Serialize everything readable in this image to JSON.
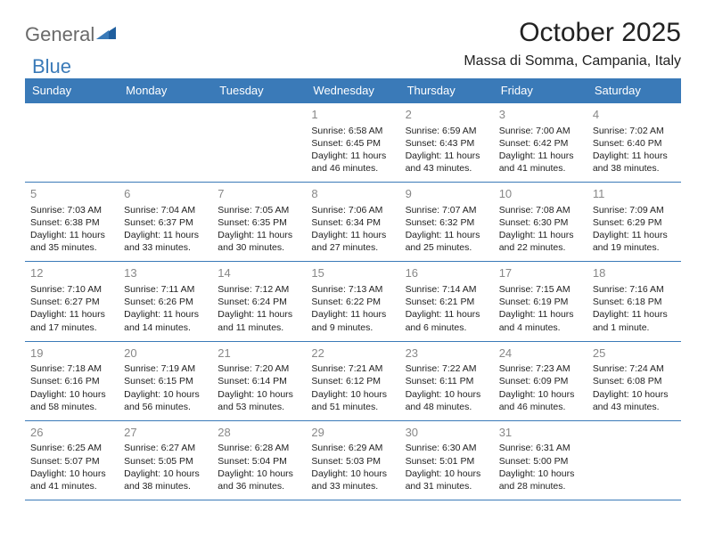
{
  "brand": {
    "general": "General",
    "blue": "Blue"
  },
  "title": "October 2025",
  "location": "Massa di Somma, Campania, Italy",
  "colors": {
    "header_bg": "#3a7ab8",
    "header_text": "#ffffff",
    "border": "#3a7ab8",
    "daynum": "#888888",
    "text": "#222222",
    "logo_gray": "#6a6a6a",
    "logo_blue": "#3a7ab8",
    "background": "#ffffff"
  },
  "typography": {
    "title_fontsize": 30,
    "location_fontsize": 16,
    "dayheader_fontsize": 13,
    "daynum_fontsize": 13,
    "cell_fontsize": 10.5
  },
  "weekdays": [
    "Sunday",
    "Monday",
    "Tuesday",
    "Wednesday",
    "Thursday",
    "Friday",
    "Saturday"
  ],
  "weeks": [
    [
      null,
      null,
      null,
      {
        "n": "1",
        "sr": "Sunrise: 6:58 AM",
        "ss": "Sunset: 6:45 PM",
        "d1": "Daylight: 11 hours",
        "d2": "and 46 minutes."
      },
      {
        "n": "2",
        "sr": "Sunrise: 6:59 AM",
        "ss": "Sunset: 6:43 PM",
        "d1": "Daylight: 11 hours",
        "d2": "and 43 minutes."
      },
      {
        "n": "3",
        "sr": "Sunrise: 7:00 AM",
        "ss": "Sunset: 6:42 PM",
        "d1": "Daylight: 11 hours",
        "d2": "and 41 minutes."
      },
      {
        "n": "4",
        "sr": "Sunrise: 7:02 AM",
        "ss": "Sunset: 6:40 PM",
        "d1": "Daylight: 11 hours",
        "d2": "and 38 minutes."
      }
    ],
    [
      {
        "n": "5",
        "sr": "Sunrise: 7:03 AM",
        "ss": "Sunset: 6:38 PM",
        "d1": "Daylight: 11 hours",
        "d2": "and 35 minutes."
      },
      {
        "n": "6",
        "sr": "Sunrise: 7:04 AM",
        "ss": "Sunset: 6:37 PM",
        "d1": "Daylight: 11 hours",
        "d2": "and 33 minutes."
      },
      {
        "n": "7",
        "sr": "Sunrise: 7:05 AM",
        "ss": "Sunset: 6:35 PM",
        "d1": "Daylight: 11 hours",
        "d2": "and 30 minutes."
      },
      {
        "n": "8",
        "sr": "Sunrise: 7:06 AM",
        "ss": "Sunset: 6:34 PM",
        "d1": "Daylight: 11 hours",
        "d2": "and 27 minutes."
      },
      {
        "n": "9",
        "sr": "Sunrise: 7:07 AM",
        "ss": "Sunset: 6:32 PM",
        "d1": "Daylight: 11 hours",
        "d2": "and 25 minutes."
      },
      {
        "n": "10",
        "sr": "Sunrise: 7:08 AM",
        "ss": "Sunset: 6:30 PM",
        "d1": "Daylight: 11 hours",
        "d2": "and 22 minutes."
      },
      {
        "n": "11",
        "sr": "Sunrise: 7:09 AM",
        "ss": "Sunset: 6:29 PM",
        "d1": "Daylight: 11 hours",
        "d2": "and 19 minutes."
      }
    ],
    [
      {
        "n": "12",
        "sr": "Sunrise: 7:10 AM",
        "ss": "Sunset: 6:27 PM",
        "d1": "Daylight: 11 hours",
        "d2": "and 17 minutes."
      },
      {
        "n": "13",
        "sr": "Sunrise: 7:11 AM",
        "ss": "Sunset: 6:26 PM",
        "d1": "Daylight: 11 hours",
        "d2": "and 14 minutes."
      },
      {
        "n": "14",
        "sr": "Sunrise: 7:12 AM",
        "ss": "Sunset: 6:24 PM",
        "d1": "Daylight: 11 hours",
        "d2": "and 11 minutes."
      },
      {
        "n": "15",
        "sr": "Sunrise: 7:13 AM",
        "ss": "Sunset: 6:22 PM",
        "d1": "Daylight: 11 hours",
        "d2": "and 9 minutes."
      },
      {
        "n": "16",
        "sr": "Sunrise: 7:14 AM",
        "ss": "Sunset: 6:21 PM",
        "d1": "Daylight: 11 hours",
        "d2": "and 6 minutes."
      },
      {
        "n": "17",
        "sr": "Sunrise: 7:15 AM",
        "ss": "Sunset: 6:19 PM",
        "d1": "Daylight: 11 hours",
        "d2": "and 4 minutes."
      },
      {
        "n": "18",
        "sr": "Sunrise: 7:16 AM",
        "ss": "Sunset: 6:18 PM",
        "d1": "Daylight: 11 hours",
        "d2": "and 1 minute."
      }
    ],
    [
      {
        "n": "19",
        "sr": "Sunrise: 7:18 AM",
        "ss": "Sunset: 6:16 PM",
        "d1": "Daylight: 10 hours",
        "d2": "and 58 minutes."
      },
      {
        "n": "20",
        "sr": "Sunrise: 7:19 AM",
        "ss": "Sunset: 6:15 PM",
        "d1": "Daylight: 10 hours",
        "d2": "and 56 minutes."
      },
      {
        "n": "21",
        "sr": "Sunrise: 7:20 AM",
        "ss": "Sunset: 6:14 PM",
        "d1": "Daylight: 10 hours",
        "d2": "and 53 minutes."
      },
      {
        "n": "22",
        "sr": "Sunrise: 7:21 AM",
        "ss": "Sunset: 6:12 PM",
        "d1": "Daylight: 10 hours",
        "d2": "and 51 minutes."
      },
      {
        "n": "23",
        "sr": "Sunrise: 7:22 AM",
        "ss": "Sunset: 6:11 PM",
        "d1": "Daylight: 10 hours",
        "d2": "and 48 minutes."
      },
      {
        "n": "24",
        "sr": "Sunrise: 7:23 AM",
        "ss": "Sunset: 6:09 PM",
        "d1": "Daylight: 10 hours",
        "d2": "and 46 minutes."
      },
      {
        "n": "25",
        "sr": "Sunrise: 7:24 AM",
        "ss": "Sunset: 6:08 PM",
        "d1": "Daylight: 10 hours",
        "d2": "and 43 minutes."
      }
    ],
    [
      {
        "n": "26",
        "sr": "Sunrise: 6:25 AM",
        "ss": "Sunset: 5:07 PM",
        "d1": "Daylight: 10 hours",
        "d2": "and 41 minutes."
      },
      {
        "n": "27",
        "sr": "Sunrise: 6:27 AM",
        "ss": "Sunset: 5:05 PM",
        "d1": "Daylight: 10 hours",
        "d2": "and 38 minutes."
      },
      {
        "n": "28",
        "sr": "Sunrise: 6:28 AM",
        "ss": "Sunset: 5:04 PM",
        "d1": "Daylight: 10 hours",
        "d2": "and 36 minutes."
      },
      {
        "n": "29",
        "sr": "Sunrise: 6:29 AM",
        "ss": "Sunset: 5:03 PM",
        "d1": "Daylight: 10 hours",
        "d2": "and 33 minutes."
      },
      {
        "n": "30",
        "sr": "Sunrise: 6:30 AM",
        "ss": "Sunset: 5:01 PM",
        "d1": "Daylight: 10 hours",
        "d2": "and 31 minutes."
      },
      {
        "n": "31",
        "sr": "Sunrise: 6:31 AM",
        "ss": "Sunset: 5:00 PM",
        "d1": "Daylight: 10 hours",
        "d2": "and 28 minutes."
      },
      null
    ]
  ]
}
